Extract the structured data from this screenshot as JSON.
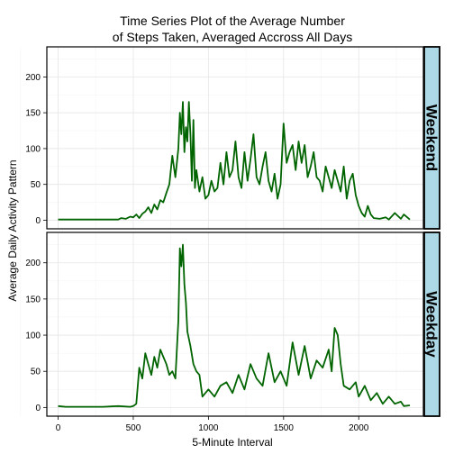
{
  "chart_data": {
    "type": "line",
    "title_lines": [
      "Time Series Plot of the Average Number",
      "of Steps Taken, Averaged Accross All Days"
    ],
    "xlabel": "5-Minute Interval",
    "ylabel": "Average Daily Activity Pattern",
    "xlim": [
      -75,
      2430
    ],
    "ylim": [
      -12,
      242
    ],
    "xticks": [
      0,
      500,
      1000,
      1500,
      2000
    ],
    "yticks": [
      0,
      50,
      100,
      150,
      200
    ],
    "grid": true,
    "line_color": "#006400",
    "strip_color": "#add8e6",
    "panels": [
      {
        "label": "Weekend",
        "x": [
          0,
          50,
          100,
          200,
          300,
          400,
          420,
          450,
          480,
          500,
          520,
          540,
          560,
          580,
          600,
          620,
          640,
          660,
          680,
          700,
          720,
          740,
          760,
          780,
          800,
          810,
          820,
          830,
          840,
          850,
          860,
          870,
          880,
          890,
          900,
          910,
          920,
          940,
          960,
          980,
          1000,
          1020,
          1040,
          1060,
          1080,
          1100,
          1120,
          1140,
          1160,
          1180,
          1200,
          1220,
          1240,
          1260,
          1280,
          1300,
          1320,
          1340,
          1360,
          1380,
          1400,
          1420,
          1440,
          1460,
          1480,
          1500,
          1520,
          1540,
          1560,
          1580,
          1600,
          1620,
          1640,
          1660,
          1680,
          1700,
          1720,
          1740,
          1760,
          1780,
          1800,
          1820,
          1840,
          1860,
          1880,
          1900,
          1920,
          1940,
          1960,
          1980,
          2000,
          2020,
          2040,
          2060,
          2080,
          2100,
          2140,
          2180,
          2200,
          2240,
          2280,
          2300,
          2340
        ],
        "y": [
          1,
          1,
          1,
          1,
          1,
          1,
          3,
          2,
          5,
          4,
          8,
          3,
          9,
          12,
          18,
          10,
          22,
          15,
          28,
          25,
          38,
          50,
          90,
          60,
          100,
          150,
          120,
          165,
          95,
          130,
          110,
          165,
          120,
          55,
          140,
          45,
          70,
          40,
          60,
          30,
          35,
          55,
          40,
          45,
          80,
          50,
          95,
          60,
          70,
          110,
          60,
          45,
          95,
          55,
          85,
          120,
          60,
          50,
          75,
          95,
          55,
          40,
          65,
          30,
          50,
          135,
          80,
          95,
          105,
          70,
          110,
          80,
          105,
          60,
          75,
          95,
          60,
          55,
          40,
          75,
          60,
          45,
          70,
          55,
          40,
          75,
          30,
          55,
          65,
          35,
          20,
          10,
          5,
          20,
          8,
          3,
          2,
          4,
          1,
          10,
          2,
          8,
          1
        ]
      },
      {
        "label": "Weekday",
        "x": [
          0,
          50,
          100,
          200,
          300,
          400,
          480,
          500,
          520,
          540,
          560,
          580,
          600,
          620,
          640,
          660,
          680,
          700,
          720,
          740,
          760,
          780,
          800,
          810,
          820,
          830,
          840,
          850,
          860,
          870,
          880,
          900,
          920,
          940,
          960,
          980,
          1000,
          1040,
          1080,
          1120,
          1160,
          1200,
          1240,
          1280,
          1320,
          1360,
          1400,
          1440,
          1480,
          1520,
          1560,
          1600,
          1640,
          1680,
          1720,
          1760,
          1800,
          1820,
          1840,
          1860,
          1880,
          1900,
          1940,
          1980,
          2000,
          2040,
          2080,
          2120,
          2160,
          2200,
          2240,
          2280,
          2300,
          2340
        ],
        "y": [
          2,
          1,
          1,
          1,
          1,
          2,
          1,
          2,
          5,
          55,
          40,
          75,
          60,
          45,
          70,
          55,
          80,
          70,
          60,
          45,
          50,
          40,
          120,
          220,
          195,
          225,
          170,
          145,
          105,
          95,
          85,
          60,
          50,
          45,
          15,
          20,
          25,
          15,
          30,
          35,
          20,
          45,
          25,
          60,
          40,
          30,
          75,
          35,
          50,
          30,
          90,
          45,
          85,
          40,
          65,
          55,
          80,
          50,
          110,
          100,
          60,
          30,
          25,
          35,
          15,
          30,
          10,
          20,
          5,
          15,
          5,
          8,
          2,
          3
        ]
      }
    ]
  }
}
